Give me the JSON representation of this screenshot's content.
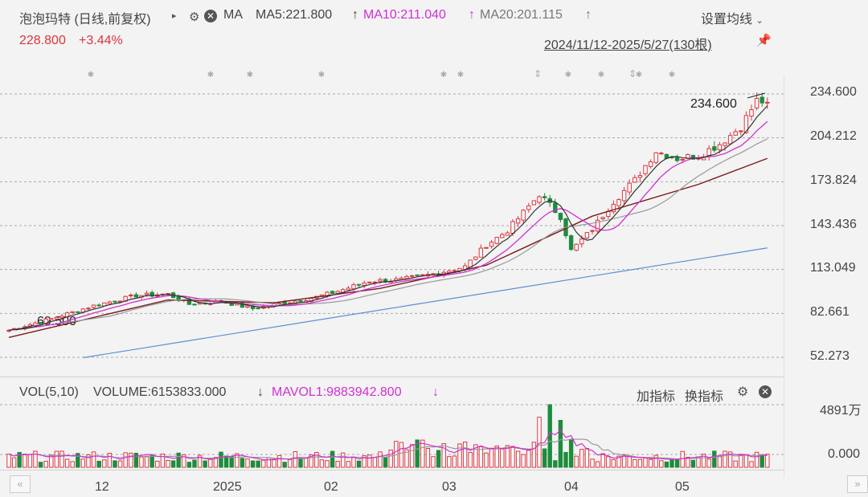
{
  "header": {
    "title": "泡泡玛特 (日线,前复权)",
    "ma_label": "MA",
    "ma5": "MA5:221.800",
    "ma10": "MA10:211.040",
    "ma20": "MA20:201.115",
    "settings": "设置均线",
    "price": "228.800",
    "change": "+3.44%",
    "range": "2024/11/12-2025/5/27(130根)"
  },
  "volume_header": {
    "label": "VOL(5,10)",
    "volume": "VOLUME:6153833.000",
    "mavol1": "MAVOL1:9883942.800",
    "add_indicator": "加指标",
    "switch_indicator": "换指标"
  },
  "colors": {
    "up": "#d9363e",
    "down": "#1e8c3c",
    "ma5": "#333333",
    "ma10": "#d22fd2",
    "ma20": "#999999",
    "ma60": "#7a1a1a",
    "ma250": "#5b8fd0"
  },
  "chart_data": [
    {
      "type": "candlestick",
      "y_ticks": [
        "234.600",
        "204.212",
        "173.824",
        "143.436",
        "113.049",
        "82.661",
        "52.273"
      ],
      "ylim": [
        52.273,
        234.6
      ],
      "x_ticks": [
        "12",
        "2025",
        "02",
        "03",
        "04",
        "05"
      ],
      "annotations": {
        "high": "234.600",
        "low": "69.500"
      },
      "candles": 130,
      "anchors": [
        [
          0,
          71
        ],
        [
          8,
          79
        ],
        [
          16,
          88
        ],
        [
          24,
          95
        ],
        [
          30,
          96
        ],
        [
          34,
          89
        ],
        [
          40,
          91
        ],
        [
          46,
          86
        ],
        [
          52,
          90
        ],
        [
          58,
          94
        ],
        [
          62,
          98
        ],
        [
          68,
          105
        ],
        [
          74,
          106
        ],
        [
          80,
          110
        ],
        [
          86,
          115
        ],
        [
          90,
          130
        ],
        [
          94,
          140
        ],
        [
          100,
          165
        ],
        [
          104,
          150
        ],
        [
          106,
          126
        ],
        [
          110,
          141
        ],
        [
          114,
          160
        ],
        [
          118,
          175
        ],
        [
          122,
          195
        ],
        [
          126,
          190
        ],
        [
          130,
          192
        ],
        [
          134,
          200
        ],
        [
          138,
          212
        ],
        [
          141,
          230
        ],
        [
          143,
          229
        ]
      ],
      "ma_series": [
        {
          "name": "MA5",
          "values_ref": "computed"
        },
        {
          "name": "MA10",
          "values_ref": "computed"
        },
        {
          "name": "MA20",
          "values_ref": "computed"
        }
      ],
      "extra_lines": {
        "ma60": [
          [
            0,
            66
          ],
          [
            30,
            92
          ],
          [
            50,
            90
          ],
          [
            70,
            100
          ],
          [
            90,
            116
          ],
          [
            110,
            150
          ],
          [
            130,
            172
          ],
          [
            143,
            190
          ]
        ],
        "ma250": [
          [
            14,
            52
          ],
          [
            143,
            128
          ]
        ]
      }
    },
    {
      "type": "bar",
      "y_ticks": [
        "4891万",
        "0.000"
      ],
      "ylim": [
        0,
        48910000
      ],
      "peak_index": 102
    }
  ]
}
